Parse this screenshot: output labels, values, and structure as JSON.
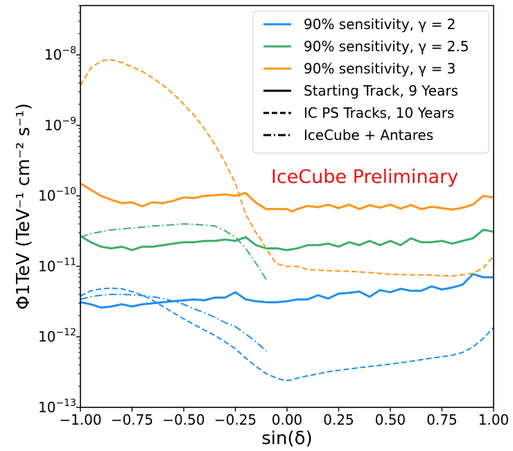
{
  "chart_data": {
    "type": "line",
    "xlabel": "sin(δ)",
    "ylabel": "Φ1TeV (TeV⁻¹ cm⁻² s⁻¹)",
    "xlim": [
      -1.0,
      1.0
    ],
    "ylim": [
      1e-13,
      5e-08
    ],
    "yscale": "log",
    "grid": false,
    "legend_position": "top-right",
    "x_ticks": [
      "−1.00",
      "−0.75",
      "−0.50",
      "−0.25",
      "0.00",
      "0.25",
      "0.50",
      "0.75",
      "1.00"
    ],
    "y_ticks": [
      {
        "base": "10",
        "exp": "−8",
        "value": 1e-08
      },
      {
        "base": "10",
        "exp": "−9",
        "value": 1e-09
      },
      {
        "base": "10",
        "exp": "−10",
        "value": 1e-10
      },
      {
        "base": "10",
        "exp": "−11",
        "value": 1e-11
      },
      {
        "base": "10",
        "exp": "−12",
        "value": 1e-12
      },
      {
        "base": "10",
        "exp": "−13",
        "value": 1e-13
      }
    ],
    "annotation": {
      "text": "IceCube Preliminary",
      "color": "#ee1111"
    },
    "colors": {
      "gamma2": "#1f8ef1",
      "gamma2_5": "#3cae6b",
      "gamma3": "#ff9418"
    },
    "legend": [
      {
        "label": "90% sensitivity, γ = 2",
        "color": "#1f8ef1",
        "style": "solid"
      },
      {
        "label": "90% sensitivity, γ = 2.5",
        "color": "#3cae6b",
        "style": "solid"
      },
      {
        "label": "90% sensitivity, γ = 3",
        "color": "#ff9418",
        "style": "solid"
      },
      {
        "label": "Starting Track, 9 Years",
        "color": "#000000",
        "style": "solid"
      },
      {
        "label": "IC PS Tracks, 10 Years",
        "color": "#000000",
        "style": "dashed"
      },
      {
        "label": "IceCube + Antares",
        "color": "#000000",
        "style": "dashdot"
      }
    ],
    "series": [
      {
        "color": "#ff9418",
        "style": "solid",
        "x": [
          -1.0,
          -0.95,
          -0.9,
          -0.85,
          -0.8,
          -0.75,
          -0.7,
          -0.65,
          -0.6,
          -0.55,
          -0.5,
          -0.45,
          -0.4,
          -0.35,
          -0.3,
          -0.25,
          -0.2,
          -0.15,
          -0.1,
          -0.05,
          0.0,
          0.025,
          0.05,
          0.1,
          0.15,
          0.2,
          0.25,
          0.3,
          0.35,
          0.4,
          0.45,
          0.5,
          0.55,
          0.6,
          0.65,
          0.7,
          0.75,
          0.8,
          0.85,
          0.9,
          0.95,
          1.0
        ],
        "y": [
          1.5e-10,
          1.22e-10,
          1e-10,
          8.8e-11,
          7.9e-11,
          8.1e-11,
          7.1e-11,
          8.1e-11,
          7.9e-11,
          8.5e-11,
          9.5e-11,
          9.3e-11,
          1e-10,
          1.02e-10,
          1.05e-10,
          1e-10,
          1.1e-10,
          8e-11,
          6.5e-11,
          6.5e-11,
          6.5e-11,
          6e-11,
          6.5e-11,
          7.2e-11,
          6.9e-11,
          7.5e-11,
          6.7e-11,
          7.5e-11,
          6.5e-11,
          7.4e-11,
          6.8e-11,
          7.5e-11,
          6.6e-11,
          7.4e-11,
          6.5e-11,
          7e-11,
          6.7e-11,
          6.4e-11,
          6.8e-11,
          7.5e-11,
          1e-10,
          9.5e-11
        ]
      },
      {
        "color": "#3cae6b",
        "style": "solid",
        "x": [
          -1.0,
          -0.95,
          -0.9,
          -0.85,
          -0.8,
          -0.75,
          -0.7,
          -0.65,
          -0.6,
          -0.55,
          -0.5,
          -0.45,
          -0.4,
          -0.35,
          -0.3,
          -0.25,
          -0.2,
          -0.15,
          -0.1,
          -0.05,
          0.0,
          0.05,
          0.1,
          0.15,
          0.2,
          0.25,
          0.3,
          0.35,
          0.4,
          0.45,
          0.5,
          0.55,
          0.6,
          0.65,
          0.7,
          0.75,
          0.8,
          0.85,
          0.9,
          0.95,
          1.0
        ],
        "y": [
          2.7e-11,
          2.2e-11,
          1.9e-11,
          1.8e-11,
          1.9e-11,
          1.7e-11,
          1.9e-11,
          1.9e-11,
          2e-11,
          2.1e-11,
          2.2e-11,
          2.2e-11,
          2.3e-11,
          2.3e-11,
          2.4e-11,
          2.3e-11,
          2.6e-11,
          2e-11,
          1.8e-11,
          1.8e-11,
          1.7e-11,
          1.8e-11,
          2e-11,
          2e-11,
          2.1e-11,
          1.9e-11,
          2.2e-11,
          2e-11,
          2.3e-11,
          2e-11,
          2.3e-11,
          2e-11,
          2.5e-11,
          2.2e-11,
          2.2e-11,
          2.3e-11,
          2.1e-11,
          2.3e-11,
          2.5e-11,
          3.3e-11,
          3.1e-11
        ]
      },
      {
        "color": "#1f8ef1",
        "style": "solid",
        "x": [
          -1.0,
          -0.95,
          -0.9,
          -0.85,
          -0.8,
          -0.75,
          -0.7,
          -0.65,
          -0.6,
          -0.55,
          -0.5,
          -0.45,
          -0.4,
          -0.35,
          -0.3,
          -0.25,
          -0.2,
          -0.15,
          -0.1,
          -0.05,
          0.0,
          0.05,
          0.1,
          0.15,
          0.2,
          0.25,
          0.3,
          0.35,
          0.4,
          0.45,
          0.5,
          0.55,
          0.6,
          0.65,
          0.7,
          0.75,
          0.8,
          0.85,
          0.9,
          0.95,
          1.0
        ],
        "y": [
          3.1e-12,
          2.9e-12,
          2.6e-12,
          2.7e-12,
          2.9e-12,
          2.7e-12,
          2.9e-12,
          3e-12,
          3.1e-12,
          3.2e-12,
          3.3e-12,
          3.4e-12,
          3.3e-12,
          3.6e-12,
          3.6e-12,
          4.3e-12,
          3.4e-12,
          3.2e-12,
          3.1e-12,
          3.1e-12,
          3.2e-12,
          3.4e-12,
          3.4e-12,
          3.9e-12,
          3.5e-12,
          4.1e-12,
          4.2e-12,
          4.4e-12,
          3.7e-12,
          4.6e-12,
          4.3e-12,
          4.8e-12,
          4.5e-12,
          4.5e-12,
          5.2e-12,
          4.7e-12,
          5e-12,
          5.5e-12,
          7.8e-12,
          7e-12,
          7e-12
        ]
      },
      {
        "color": "#ff9418",
        "style": "dashed",
        "x": [
          -1.0,
          -0.95,
          -0.9,
          -0.85,
          -0.8,
          -0.75,
          -0.7,
          -0.65,
          -0.6,
          -0.55,
          -0.5,
          -0.45,
          -0.4,
          -0.35,
          -0.3,
          -0.25,
          -0.2,
          -0.15,
          -0.13,
          -0.11,
          -0.09,
          -0.07,
          -0.05,
          -0.03,
          0.0,
          0.05,
          0.1,
          0.2,
          0.3,
          0.4,
          0.5,
          0.6,
          0.7,
          0.8,
          0.85,
          0.9,
          0.95,
          1.0
        ],
        "y": [
          3.7e-09,
          6.5e-09,
          8.2e-09,
          8.5e-09,
          7.8e-09,
          6.8e-09,
          5.8e-09,
          4.7e-09,
          3.7e-09,
          2.8e-09,
          2e-09,
          1.4e-09,
          9e-10,
          5.4e-10,
          3e-10,
          1.5e-10,
          5.5e-11,
          3e-11,
          2.5e-11,
          2e-11,
          1.6e-11,
          1.3e-11,
          1.1e-11,
          1.05e-11,
          1e-11,
          1e-11,
          9e-12,
          8.7e-12,
          8.5e-12,
          8.2e-12,
          7.7e-12,
          7.6e-12,
          7.5e-12,
          7.3e-12,
          7.6e-12,
          8e-12,
          9.5e-12,
          1.4e-11
        ]
      },
      {
        "color": "#1f8ef1",
        "style": "dashed",
        "x": [
          -1.0,
          -0.95,
          -0.9,
          -0.85,
          -0.8,
          -0.75,
          -0.7,
          -0.65,
          -0.6,
          -0.55,
          -0.5,
          -0.45,
          -0.4,
          -0.35,
          -0.3,
          -0.25,
          -0.2,
          -0.15,
          -0.1,
          -0.05,
          -0.02,
          0.0,
          0.025,
          0.05,
          0.1,
          0.2,
          0.3,
          0.4,
          0.5,
          0.6,
          0.7,
          0.8,
          0.85,
          0.9,
          0.95,
          1.0
        ],
        "y": [
          3.8e-12,
          4.5e-12,
          4.8e-12,
          4.9e-12,
          4.8e-12,
          4.4e-12,
          3.9e-12,
          3.3e-12,
          2.7e-12,
          2.2e-12,
          1.8e-12,
          1.5e-12,
          1.25e-12,
          1.05e-12,
          8.5e-13,
          6.8e-13,
          5e-13,
          3.8e-13,
          3e-13,
          2.6e-13,
          2.45e-13,
          2.4e-13,
          2.45e-13,
          2.6e-13,
          2.8e-13,
          3.2e-13,
          3.5e-13,
          3.8e-13,
          4.1e-13,
          4.5e-13,
          5e-13,
          5.5e-13,
          6e-13,
          7.2e-13,
          9.5e-13,
          1.35e-12
        ]
      },
      {
        "color": "#3cae6b",
        "style": "dashdot",
        "x": [
          -1.0,
          -0.95,
          -0.9,
          -0.85,
          -0.8,
          -0.75,
          -0.7,
          -0.65,
          -0.6,
          -0.55,
          -0.5,
          -0.45,
          -0.4,
          -0.35,
          -0.3,
          -0.25,
          -0.2,
          -0.15,
          -0.1
        ],
        "y": [
          2.6e-11,
          2.9e-11,
          3.1e-11,
          3.3e-11,
          3.4e-11,
          3.5e-11,
          3.6e-11,
          3.75e-11,
          3.8e-11,
          3.9e-11,
          4e-11,
          3.95e-11,
          3.85e-11,
          3.75e-11,
          3.2e-11,
          2.6e-11,
          1.8e-11,
          1.1e-11,
          6.5e-12
        ]
      },
      {
        "color": "#1f8ef1",
        "style": "dashdot",
        "x": [
          -1.0,
          -0.95,
          -0.9,
          -0.85,
          -0.8,
          -0.75,
          -0.7,
          -0.65,
          -0.6,
          -0.55,
          -0.5,
          -0.45,
          -0.4,
          -0.35,
          -0.3,
          -0.25,
          -0.2,
          -0.15,
          -0.1
        ],
        "y": [
          3.4e-12,
          3.7e-12,
          3.9e-12,
          4e-12,
          4e-12,
          3.95e-12,
          3.85e-12,
          3.7e-12,
          3.5e-12,
          3.2e-12,
          2.9e-12,
          2.5e-12,
          2.2e-12,
          1.9e-12,
          1.6e-12,
          1.4e-12,
          1.1e-12,
          8.5e-13,
          6.3e-13
        ]
      }
    ]
  }
}
